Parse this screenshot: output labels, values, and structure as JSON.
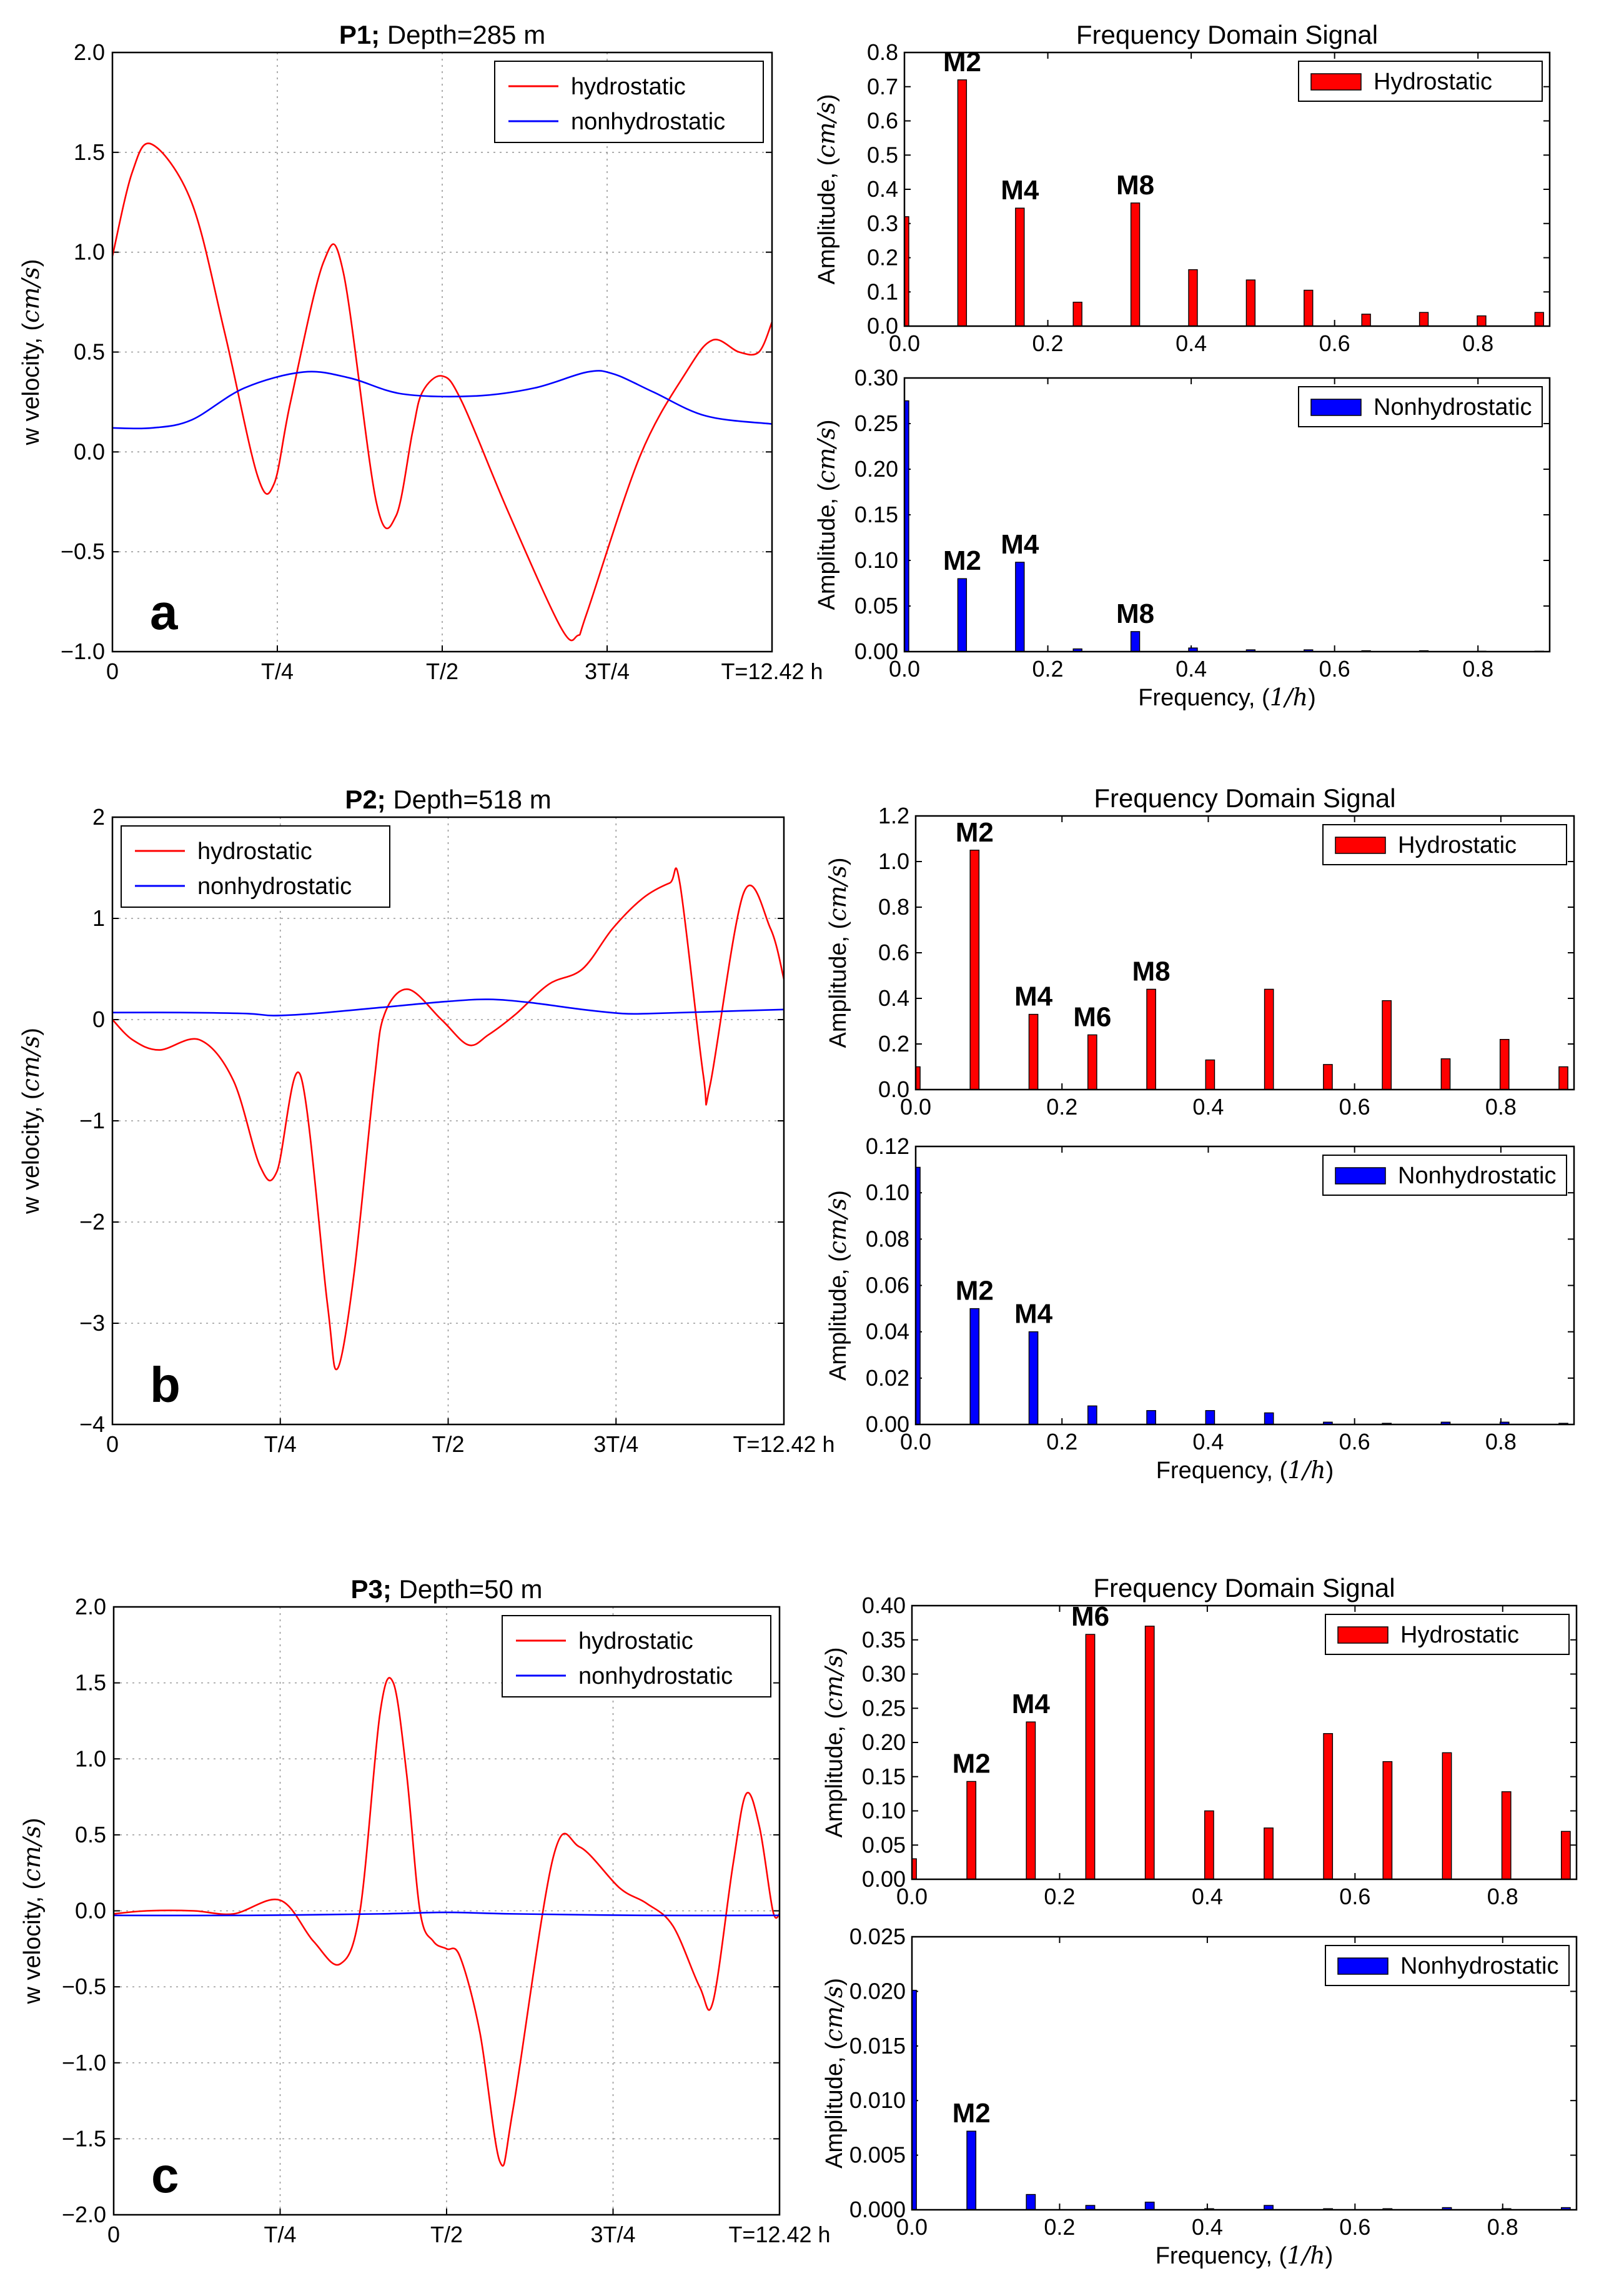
{
  "chart_data": [
    {
      "type": "line",
      "panel": "a",
      "title_bold": "P1;",
      "title_rest": "Depth=285 m",
      "xlabel": "",
      "ylabel": "w velocity, (cm/s)",
      "x_tick_labels": [
        "0",
        "T/4",
        "T/2",
        "3T/4",
        "T=12.42 h"
      ],
      "xlim": [
        0,
        1
      ],
      "ylim": [
        -1.0,
        2.0
      ],
      "y_ticks": [
        -1.0,
        -0.5,
        0.0,
        0.5,
        1.0,
        1.5,
        2.0
      ],
      "y_tick_labels": [
        "−1.0",
        "−0.5",
        "0.0",
        "0.5",
        "1.0",
        "1.5",
        "2.0"
      ],
      "legend_position": "top-right",
      "series": [
        {
          "name": "hydrostatic",
          "color": "#ff0000",
          "x": [
            0,
            0.03,
            0.06,
            0.12,
            0.17,
            0.22,
            0.245,
            0.27,
            0.32,
            0.35,
            0.4,
            0.43,
            0.455,
            0.47,
            0.5,
            0.53,
            0.6,
            0.68,
            0.705,
            0.72,
            0.8,
            0.87,
            0.91,
            0.95,
            0.98,
            1.0
          ],
          "values": [
            0.98,
            1.4,
            1.54,
            1.25,
            0.6,
            -0.12,
            -0.16,
            0.25,
            0.95,
            0.9,
            -0.25,
            -0.32,
            0.1,
            0.3,
            0.38,
            0.25,
            -0.3,
            -0.88,
            -0.92,
            -0.8,
            -0.02,
            0.4,
            0.56,
            0.5,
            0.5,
            0.65
          ]
        },
        {
          "name": "nonhydrostatic",
          "color": "#0000ff",
          "x": [
            0,
            0.06,
            0.12,
            0.2,
            0.29,
            0.36,
            0.44,
            0.55,
            0.64,
            0.72,
            0.76,
            0.82,
            0.9,
            1.0
          ],
          "values": [
            0.12,
            0.12,
            0.16,
            0.32,
            0.4,
            0.37,
            0.29,
            0.28,
            0.32,
            0.4,
            0.39,
            0.3,
            0.18,
            0.14
          ]
        }
      ]
    },
    {
      "type": "bar",
      "panel": "a-top",
      "title": "Frequency Domain Signal",
      "xlabel": "",
      "ylabel": "Amplitude, (cm/s)",
      "xlim": [
        0,
        0.9
      ],
      "ylim": [
        0,
        0.8
      ],
      "x_ticks": [
        0.0,
        0.2,
        0.4,
        0.6,
        0.8
      ],
      "x_tick_labels": [
        "0.0",
        "0.2",
        "0.4",
        "0.6",
        "0.8"
      ],
      "y_ticks": [
        0.0,
        0.1,
        0.2,
        0.3,
        0.4,
        0.5,
        0.6,
        0.7,
        0.8
      ],
      "y_tick_labels": [
        "0.0",
        "0.1",
        "0.2",
        "0.3",
        "0.4",
        "0.5",
        "0.6",
        "0.7",
        "0.8"
      ],
      "legend_position": "top-right",
      "series": [
        {
          "name": "Hydrostatic",
          "color": "#ff0000",
          "x": [
            0,
            0.0805,
            0.161,
            0.2415,
            0.322,
            0.4025,
            0.483,
            0.5635,
            0.644,
            0.7245,
            0.805,
            0.8855
          ],
          "values": [
            0.32,
            0.72,
            0.345,
            0.07,
            0.36,
            0.165,
            0.135,
            0.105,
            0.035,
            0.04,
            0.03,
            0.04
          ]
        }
      ],
      "annotations": [
        {
          "text": "M2",
          "x": 0.0805,
          "y": 0.72
        },
        {
          "text": "M4",
          "x": 0.161,
          "y": 0.345
        },
        {
          "text": "M8",
          "x": 0.322,
          "y": 0.36
        }
      ]
    },
    {
      "type": "bar",
      "panel": "a-bottom",
      "title": "",
      "xlabel": "Frequency, (1/h)",
      "ylabel": "Amplitude, (cm/s)",
      "xlim": [
        0,
        0.9
      ],
      "ylim": [
        0,
        0.3
      ],
      "x_ticks": [
        0.0,
        0.2,
        0.4,
        0.6,
        0.8
      ],
      "x_tick_labels": [
        "0.0",
        "0.2",
        "0.4",
        "0.6",
        "0.8"
      ],
      "y_ticks": [
        0.0,
        0.05,
        0.1,
        0.15,
        0.2,
        0.25,
        0.3
      ],
      "y_tick_labels": [
        "0.00",
        "0.05",
        "0.10",
        "0.15",
        "0.20",
        "0.25",
        "0.30"
      ],
      "legend_position": "top-right",
      "series": [
        {
          "name": "Nonhydrostatic",
          "color": "#0000ff",
          "x": [
            0,
            0.0805,
            0.161,
            0.2415,
            0.322,
            0.4025,
            0.483,
            0.5635,
            0.644,
            0.7245,
            0.805,
            0.8855
          ],
          "values": [
            0.275,
            0.08,
            0.098,
            0.003,
            0.022,
            0.004,
            0.002,
            0.002,
            0.001,
            0.001,
            0.0005,
            0.0005
          ]
        }
      ],
      "annotations": [
        {
          "text": "M2",
          "x": 0.0805,
          "y": 0.08
        },
        {
          "text": "M4",
          "x": 0.161,
          "y": 0.098
        },
        {
          "text": "M8",
          "x": 0.322,
          "y": 0.022
        }
      ]
    },
    {
      "type": "line",
      "panel": "b",
      "title_bold": "P2;",
      "title_rest": "Depth=518 m",
      "xlabel": "",
      "ylabel": "w velocity, (cm/s)",
      "x_tick_labels": [
        "0",
        "T/4",
        "T/2",
        "3T/4",
        "T=12.42 h"
      ],
      "xlim": [
        0,
        1
      ],
      "ylim": [
        -4,
        2
      ],
      "y_ticks": [
        -4,
        -3,
        -2,
        -1,
        0,
        1,
        2
      ],
      "y_tick_labels": [
        "−4",
        "−3",
        "−2",
        "−1",
        "0",
        "1",
        "2"
      ],
      "legend_position": "top-left",
      "series": [
        {
          "name": "hydrostatic",
          "color": "#ff0000",
          "x": [
            0,
            0.03,
            0.07,
            0.13,
            0.18,
            0.22,
            0.245,
            0.28,
            0.32,
            0.335,
            0.36,
            0.39,
            0.405,
            0.44,
            0.49,
            0.53,
            0.56,
            0.6,
            0.65,
            0.7,
            0.745,
            0.79,
            0.83,
            0.845,
            0.88,
            0.89,
            0.94,
            0.98,
            1.0
          ],
          "values": [
            0.0,
            -0.2,
            -0.3,
            -0.2,
            -0.6,
            -1.45,
            -1.5,
            -0.55,
            -2.8,
            -3.45,
            -2.5,
            -0.6,
            0.05,
            0.3,
            0.0,
            -0.25,
            -0.15,
            0.05,
            0.35,
            0.5,
            0.9,
            1.2,
            1.35,
            1.35,
            -0.55,
            -0.65,
            1.25,
            0.9,
            0.4
          ]
        },
        {
          "name": "nonhydrostatic",
          "color": "#0000ff",
          "x": [
            0,
            0.1,
            0.2,
            0.24,
            0.3,
            0.4,
            0.5,
            0.56,
            0.62,
            0.7,
            0.76,
            0.8,
            0.9,
            1.0
          ],
          "values": [
            0.07,
            0.07,
            0.06,
            0.04,
            0.06,
            0.12,
            0.18,
            0.2,
            0.17,
            0.1,
            0.06,
            0.06,
            0.08,
            0.1
          ]
        }
      ]
    },
    {
      "type": "bar",
      "panel": "b-top",
      "title": "Frequency Domain Signal",
      "xlabel": "",
      "ylabel": "Amplitude, (cm/s)",
      "xlim": [
        0,
        0.9
      ],
      "ylim": [
        0,
        1.2
      ],
      "x_ticks": [
        0.0,
        0.2,
        0.4,
        0.6,
        0.8
      ],
      "x_tick_labels": [
        "0.0",
        "0.2",
        "0.4",
        "0.6",
        "0.8"
      ],
      "y_ticks": [
        0.0,
        0.2,
        0.4,
        0.6,
        0.8,
        1.0,
        1.2
      ],
      "y_tick_labels": [
        "0.0",
        "0.2",
        "0.4",
        "0.6",
        "0.8",
        "1.0",
        "1.2"
      ],
      "legend_position": "top-right",
      "series": [
        {
          "name": "Hydrostatic",
          "color": "#ff0000",
          "x": [
            0,
            0.0805,
            0.161,
            0.2415,
            0.322,
            0.4025,
            0.483,
            0.5635,
            0.644,
            0.7245,
            0.805,
            0.8855
          ],
          "values": [
            0.1,
            1.05,
            0.33,
            0.24,
            0.44,
            0.13,
            0.44,
            0.11,
            0.39,
            0.135,
            0.22,
            0.1
          ]
        }
      ],
      "annotations": [
        {
          "text": "M2",
          "x": 0.0805,
          "y": 1.05
        },
        {
          "text": "M4",
          "x": 0.161,
          "y": 0.33
        },
        {
          "text": "M6",
          "x": 0.2415,
          "y": 0.24
        },
        {
          "text": "M8",
          "x": 0.322,
          "y": 0.44
        }
      ]
    },
    {
      "type": "bar",
      "panel": "b-bottom",
      "title": "",
      "xlabel": "Frequency, (1/h)",
      "ylabel": "Amplitude, (cm/s)",
      "xlim": [
        0,
        0.9
      ],
      "ylim": [
        0,
        0.12
      ],
      "x_ticks": [
        0.0,
        0.2,
        0.4,
        0.6,
        0.8
      ],
      "x_tick_labels": [
        "0.0",
        "0.2",
        "0.4",
        "0.6",
        "0.8"
      ],
      "y_ticks": [
        0.0,
        0.02,
        0.04,
        0.06,
        0.08,
        0.1,
        0.12
      ],
      "y_tick_labels": [
        "0.00",
        "0.02",
        "0.04",
        "0.06",
        "0.08",
        "0.10",
        "0.12"
      ],
      "legend_position": "top-right",
      "series": [
        {
          "name": "Nonhydrostatic",
          "color": "#0000ff",
          "x": [
            0,
            0.0805,
            0.161,
            0.2415,
            0.322,
            0.4025,
            0.483,
            0.5635,
            0.644,
            0.7245,
            0.805,
            0.8855
          ],
          "values": [
            0.111,
            0.05,
            0.04,
            0.008,
            0.006,
            0.006,
            0.005,
            0.001,
            0.0005,
            0.001,
            0.001,
            0.0005
          ]
        }
      ],
      "annotations": [
        {
          "text": "M2",
          "x": 0.0805,
          "y": 0.05
        },
        {
          "text": "M4",
          "x": 0.161,
          "y": 0.04
        }
      ]
    },
    {
      "type": "line",
      "panel": "c",
      "title_bold": "P3;",
      "title_rest": "Depth=50 m",
      "xlabel": "",
      "ylabel": "w velocity, (cm/s)",
      "x_tick_labels": [
        "0",
        "T/4",
        "T/2",
        "3T/4",
        "T=12.42 h"
      ],
      "xlim": [
        0,
        1
      ],
      "ylim": [
        -2.0,
        2.0
      ],
      "y_ticks": [
        -2.0,
        -1.5,
        -1.0,
        -0.5,
        0.0,
        0.5,
        1.0,
        1.5,
        2.0
      ],
      "y_tick_labels": [
        "−2.0",
        "−1.5",
        "−1.0",
        "−0.5",
        "0.0",
        "0.5",
        "1.0",
        "1.5",
        "2.0"
      ],
      "legend_position": "top-right",
      "series": [
        {
          "name": "hydrostatic",
          "color": "#ff0000",
          "x": [
            0,
            0.05,
            0.12,
            0.18,
            0.25,
            0.3,
            0.34,
            0.37,
            0.4,
            0.42,
            0.44,
            0.46,
            0.48,
            0.5,
            0.52,
            0.55,
            0.58,
            0.6,
            0.66,
            0.7,
            0.76,
            0.8,
            0.84,
            0.88,
            0.9,
            0.93,
            0.95,
            0.97,
            0.99,
            1.0
          ],
          "values": [
            -0.02,
            0.0,
            0.0,
            -0.02,
            0.07,
            -0.2,
            -0.35,
            0.0,
            1.3,
            1.5,
            0.9,
            0.0,
            -0.2,
            -0.25,
            -0.3,
            -0.8,
            -1.65,
            -1.3,
            0.35,
            0.42,
            0.15,
            0.05,
            -0.1,
            -0.5,
            -0.6,
            0.3,
            0.77,
            0.55,
            0.0,
            -0.02
          ]
        },
        {
          "name": "nonhydrostatic",
          "color": "#0000ff",
          "x": [
            0,
            0.2,
            0.4,
            0.5,
            0.6,
            0.8,
            1.0
          ],
          "values": [
            -0.03,
            -0.03,
            -0.02,
            -0.01,
            -0.02,
            -0.03,
            -0.03
          ]
        }
      ]
    },
    {
      "type": "bar",
      "panel": "c-top",
      "title": "Frequency Domain Signal",
      "xlabel": "",
      "ylabel": "Amplitude, (cm/s)",
      "xlim": [
        0,
        0.9
      ],
      "ylim": [
        0,
        0.4
      ],
      "x_ticks": [
        0.0,
        0.2,
        0.4,
        0.6,
        0.8
      ],
      "x_tick_labels": [
        "0.0",
        "0.2",
        "0.4",
        "0.6",
        "0.8"
      ],
      "y_ticks": [
        0.0,
        0.05,
        0.1,
        0.15,
        0.2,
        0.25,
        0.3,
        0.35,
        0.4
      ],
      "y_tick_labels": [
        "0.00",
        "0.05",
        "0.10",
        "0.15",
        "0.20",
        "0.25",
        "0.30",
        "0.35",
        "0.40"
      ],
      "legend_position": "top-right",
      "series": [
        {
          "name": "Hydrostatic",
          "color": "#ff0000",
          "x": [
            0,
            0.0805,
            0.161,
            0.2415,
            0.322,
            0.4025,
            0.483,
            0.5635,
            0.644,
            0.7245,
            0.805,
            0.8855
          ],
          "values": [
            0.03,
            0.143,
            0.23,
            0.358,
            0.37,
            0.1,
            0.075,
            0.213,
            0.172,
            0.185,
            0.128,
            0.07
          ]
        }
      ],
      "annotations": [
        {
          "text": "M2",
          "x": 0.0805,
          "y": 0.143
        },
        {
          "text": "M4",
          "x": 0.161,
          "y": 0.23
        },
        {
          "text": "M6",
          "x": 0.2415,
          "y": 0.358
        }
      ]
    },
    {
      "type": "bar",
      "panel": "c-bottom",
      "title": "",
      "xlabel": "Frequency, (1/h)",
      "ylabel": "Amplitude, (cm/s)",
      "xlim": [
        0,
        0.9
      ],
      "ylim": [
        0,
        0.025
      ],
      "x_ticks": [
        0.0,
        0.2,
        0.4,
        0.6,
        0.8
      ],
      "x_tick_labels": [
        "0.0",
        "0.2",
        "0.4",
        "0.6",
        "0.8"
      ],
      "y_ticks": [
        0.0,
        0.005,
        0.01,
        0.015,
        0.02,
        0.025
      ],
      "y_tick_labels": [
        "0.000",
        "0.005",
        "0.010",
        "0.015",
        "0.020",
        "0.025"
      ],
      "legend_position": "top-right",
      "series": [
        {
          "name": "Nonhydrostatic",
          "color": "#0000ff",
          "x": [
            0,
            0.0805,
            0.161,
            0.2415,
            0.322,
            0.4025,
            0.483,
            0.5635,
            0.644,
            0.7245,
            0.805,
            0.8855
          ],
          "values": [
            0.0201,
            0.0072,
            0.0014,
            0.0004,
            0.0007,
            0.0001,
            0.0004,
            0.0001,
            0.0001,
            0.0002,
            0.0001,
            0.0002
          ]
        }
      ],
      "annotations": [
        {
          "text": "M2",
          "x": 0.0805,
          "y": 0.0072
        }
      ]
    }
  ]
}
